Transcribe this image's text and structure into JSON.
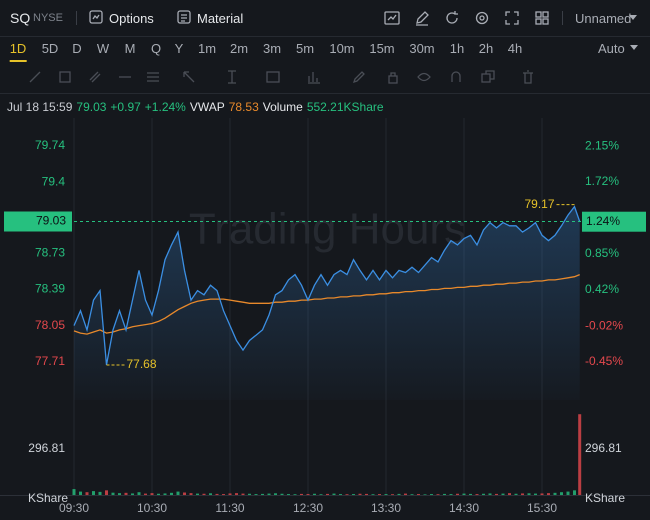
{
  "toolbar": {
    "symbol": "SQ",
    "exchange": "NYSE",
    "buttons": [
      "Options",
      "Material"
    ],
    "layout": "Unnamed"
  },
  "timeframes": [
    "1D",
    "5D",
    "D",
    "W",
    "M",
    "Q",
    "Y",
    "1m",
    "2m",
    "3m",
    "5m",
    "10m",
    "15m",
    "30m",
    "1h",
    "2h",
    "4h"
  ],
  "selected_timeframe": "1D",
  "scale_mode": "Auto",
  "info": {
    "datetime": "Jul 18 15:59",
    "change": "+0.97",
    "change_pct": "+1.24%",
    "volume": "552.21KShare"
  },
  "chart_data": {
    "type": "line",
    "watermark": "Trading Hours",
    "x": [
      "09:30",
      "09:35",
      "09:40",
      "09:45",
      "09:50",
      "09:55",
      "10:00",
      "10:05",
      "10:10",
      "10:15",
      "10:20",
      "10:25",
      "10:30",
      "10:35",
      "10:40",
      "10:45",
      "10:50",
      "10:55",
      "11:00",
      "11:05",
      "11:10",
      "11:15",
      "11:20",
      "11:25",
      "11:30",
      "11:35",
      "11:40",
      "11:45",
      "11:50",
      "11:55",
      "12:00",
      "12:05",
      "12:10",
      "12:15",
      "12:20",
      "12:25",
      "12:30",
      "12:35",
      "12:40",
      "12:45",
      "12:50",
      "12:55",
      "13:00",
      "13:05",
      "13:10",
      "13:15",
      "13:20",
      "13:25",
      "13:30",
      "13:35",
      "13:40",
      "13:45",
      "13:50",
      "13:55",
      "14:00",
      "14:05",
      "14:10",
      "14:15",
      "14:20",
      "14:25",
      "14:30",
      "14:35",
      "14:40",
      "14:45",
      "14:50",
      "14:55",
      "15:00",
      "15:05",
      "15:10",
      "15:15",
      "15:20",
      "15:25",
      "15:30",
      "15:35",
      "15:40",
      "15:45",
      "15:50",
      "15:55",
      "15:59"
    ],
    "series": [
      {
        "color": "#3b8fe3",
        "values": [
          78.05,
          78.19,
          78.01,
          78.29,
          78.38,
          77.68,
          78.01,
          78.19,
          78.01,
          78.29,
          78.57,
          78.29,
          78.15,
          78.38,
          78.67,
          78.81,
          78.93,
          78.57,
          78.29,
          78.38,
          78.34,
          78.43,
          78.38,
          78.19,
          78.05,
          77.91,
          77.82,
          77.91,
          77.96,
          78.01,
          78.15,
          78.34,
          78.38,
          78.48,
          78.53,
          78.43,
          78.29,
          78.43,
          78.53,
          78.43,
          78.53,
          78.57,
          78.53,
          78.67,
          78.57,
          78.48,
          78.57,
          78.48,
          78.57,
          78.5,
          78.57,
          78.55,
          78.6,
          78.55,
          78.62,
          78.69,
          78.65,
          78.76,
          78.85,
          78.81,
          78.87,
          78.9,
          78.81,
          78.95,
          79.02,
          78.97,
          79.02,
          78.99,
          78.99,
          78.93,
          78.97,
          79.02,
          78.9,
          78.85,
          78.9,
          78.99,
          79.09,
          79.17,
          79.03
        ]
      },
      {
        "name": "VWAP",
        "color": "#e8892b",
        "values": [
          78.0,
          77.98,
          77.97,
          77.99,
          78.01,
          77.98,
          77.99,
          78.01,
          78.02,
          78.04,
          78.05,
          78.06,
          78.07,
          78.09,
          78.12,
          78.16,
          78.2,
          78.23,
          78.26,
          78.28,
          78.29,
          78.3,
          78.3,
          78.3,
          78.29,
          78.28,
          78.27,
          78.26,
          78.26,
          78.26,
          78.26,
          78.27,
          78.27,
          78.28,
          78.28,
          78.29,
          78.29,
          78.3,
          78.3,
          78.31,
          78.31,
          78.32,
          78.32,
          78.33,
          78.33,
          78.34,
          78.34,
          78.35,
          78.35,
          78.36,
          78.36,
          78.37,
          78.37,
          78.38,
          78.38,
          78.39,
          78.39,
          78.4,
          78.4,
          78.41,
          78.41,
          78.42,
          78.42,
          78.43,
          78.43,
          78.44,
          78.44,
          78.45,
          78.45,
          78.46,
          78.46,
          78.47,
          78.47,
          78.48,
          78.48,
          78.49,
          78.5,
          78.51,
          78.53
        ]
      }
    ],
    "xlim": [
      "09:30",
      "16:00"
    ],
    "xticks": [
      "09:30",
      "10:30",
      "11:30",
      "12:30",
      "13:30",
      "14:30",
      "15:30"
    ],
    "grid": "x",
    "ylim": [
      77.35,
      79.91
    ],
    "yticks": [
      79.74,
      79.4,
      78.73,
      78.39,
      78.05,
      77.71
    ],
    "y2lim": [
      -0.91,
      2.37
    ],
    "y2ticks": [
      {
        "value": 2.15,
        "label": "2.15%"
      },
      {
        "value": 1.72,
        "label": "1.72%"
      },
      {
        "value": 0.85,
        "label": "0.85%"
      },
      {
        "value": 0.42,
        "label": "0.42%"
      },
      {
        "value": -0.02,
        "label": "-0.02%"
      },
      {
        "value": -0.45,
        "label": "-0.45%"
      }
    ],
    "last": {
      "price": 79.03,
      "pct": {
        "value": 1.24,
        "label": "1.24%"
      }
    },
    "high": {
      "value": 79.17,
      "x": "15:55"
    },
    "low": {
      "value": 77.68,
      "x": "09:55"
    },
    "up_color": "#26c07f",
    "down_color": "#e5484d",
    "annotation_color": "#e6c229",
    "volume": {
      "name": "Volume",
      "unit": "KShare",
      "ylim": [
        0,
        560
      ],
      "yticks": [
        296.81
      ],
      "values": [
        38,
        22,
        18,
        25,
        20,
        30,
        15,
        12,
        14,
        10,
        18,
        9,
        12,
        8,
        10,
        14,
        22,
        16,
        12,
        9,
        8,
        11,
        7,
        6,
        10,
        12,
        9,
        8,
        6,
        7,
        9,
        11,
        8,
        6,
        5,
        7,
        6,
        8,
        5,
        7,
        9,
        6,
        5,
        6,
        8,
        7,
        5,
        6,
        6,
        5,
        7,
        9,
        5,
        6,
        4,
        6,
        5,
        7,
        6,
        8,
        9,
        7,
        6,
        8,
        10,
        7,
        9,
        12,
        8,
        10,
        11,
        9,
        10,
        12,
        14,
        18,
        22,
        30,
        520
      ]
    }
  }
}
